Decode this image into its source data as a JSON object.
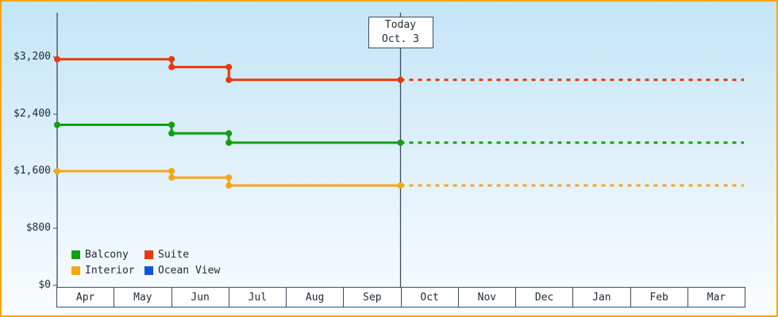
{
  "chart_data": {
    "type": "line",
    "subtype": "step-price-history-with-forecast",
    "months": [
      "Apr",
      "May",
      "Jun",
      "Jul",
      "Aug",
      "Sep",
      "Oct",
      "Nov",
      "Dec",
      "Jan",
      "Feb",
      "Mar"
    ],
    "y_ticks": [
      "$0",
      "$800",
      "$1,600",
      "$2,400",
      "$3,200"
    ],
    "y_tick_values": [
      0,
      800,
      1600,
      2400,
      3200
    ],
    "ylim": [
      0,
      3600
    ],
    "today": {
      "line1": "Today",
      "line2": "Oct. 3",
      "month_index": 6
    },
    "series": [
      {
        "name": "Suite",
        "color": "#e8380d",
        "forecast": true,
        "steps": [
          {
            "month": 0,
            "value": 3170
          },
          {
            "month": 2,
            "value": 3060
          },
          {
            "month": 3,
            "value": 2880
          }
        ]
      },
      {
        "name": "Balcony",
        "color": "#10a010",
        "forecast": true,
        "steps": [
          {
            "month": 0,
            "value": 2250
          },
          {
            "month": 2,
            "value": 2130
          },
          {
            "month": 3,
            "value": 2000
          }
        ]
      },
      {
        "name": "Interior",
        "color": "#f4a71b",
        "forecast": true,
        "steps": [
          {
            "month": 0,
            "value": 1600
          },
          {
            "month": 2,
            "value": 1510
          },
          {
            "month": 3,
            "value": 1400
          }
        ]
      },
      {
        "name": "Ocean View",
        "color": "#1154e0",
        "forecast": false,
        "steps": []
      }
    ],
    "legend_position": "bottom-left",
    "grid": false,
    "colors": {
      "frame": "#ffa500",
      "axis": "#3b4c5e",
      "text": "#1e2a36",
      "plot_top": "#c3e5f7",
      "plot_bottom": "#fbfdff",
      "box_bg": "#ffffff"
    }
  }
}
